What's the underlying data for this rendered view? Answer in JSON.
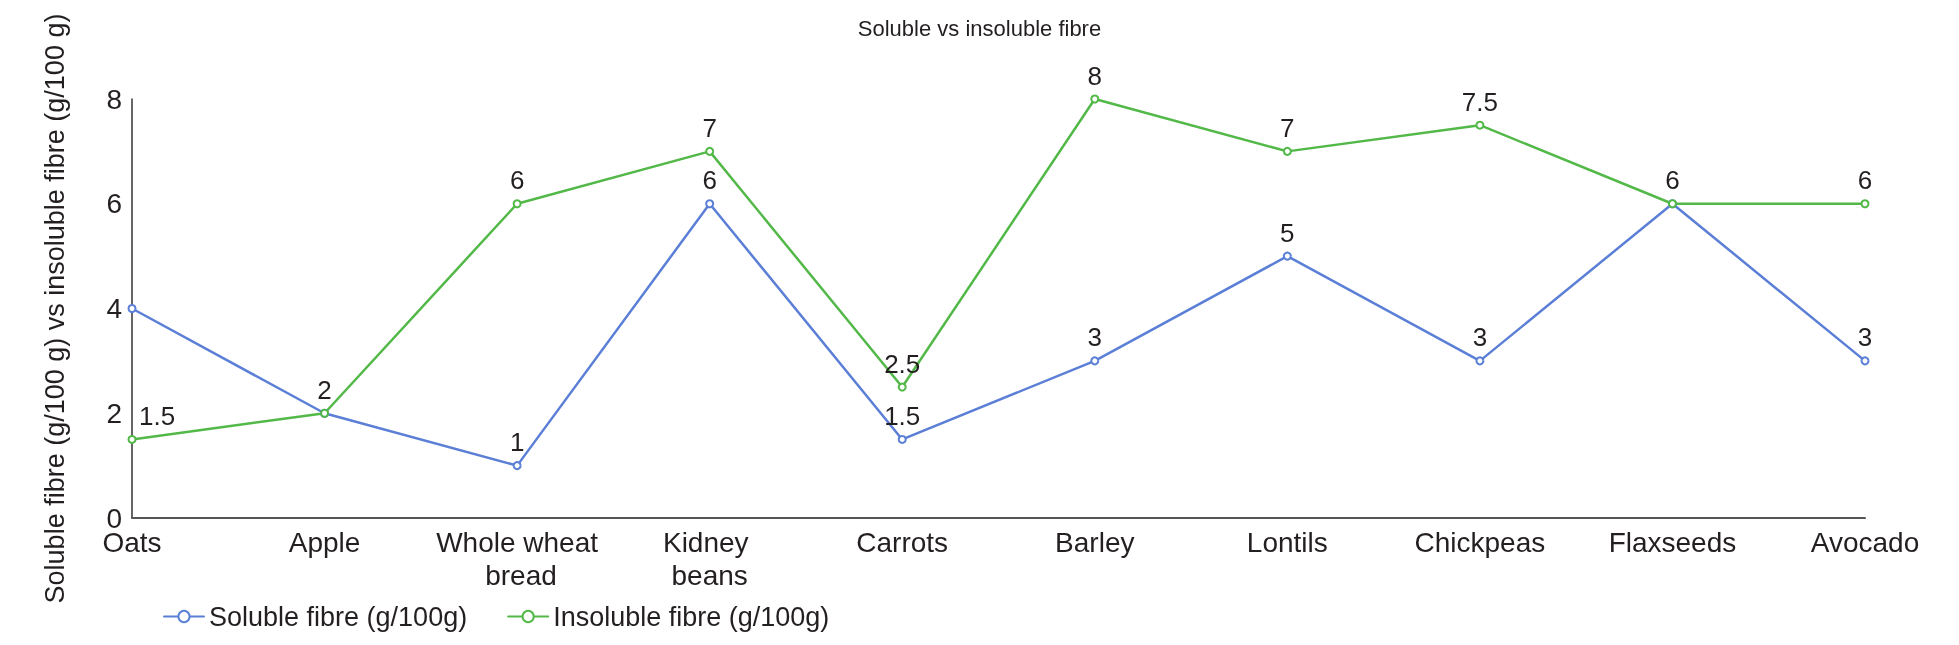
{
  "chart_data": {
    "type": "line",
    "title": "Soluble vs insoluble fibre",
    "ylabel": "Soluble fibre (g/100 g) vs insoluble fibre (g/100 g)",
    "categories": [
      "Oats",
      "Apple",
      "Whole wheat bread",
      "Kidney beans",
      "Carrots",
      "Barley",
      "Lontils",
      "Chickpeas",
      "Flaxseeds",
      "Avocado"
    ],
    "series": [
      {
        "name": "Soluble fibre (g/100g)",
        "color": "#5b7fd6",
        "values": [
          4,
          2,
          1,
          6,
          1.5,
          3,
          5,
          3,
          6,
          3
        ],
        "value_labels": [
          null,
          null,
          "1",
          "6",
          "1.5",
          "3",
          "5",
          "3",
          null,
          "3"
        ]
      },
      {
        "name": "Insoluble fibre (g/100g)",
        "color": "#52b848",
        "values": [
          1.5,
          2,
          6,
          7,
          2.5,
          8,
          7,
          7.5,
          6,
          6
        ],
        "value_labels": [
          "1.5",
          "2",
          "6",
          "7",
          "2.5",
          "8",
          "7",
          "7.5",
          "6",
          "6"
        ]
      }
    ],
    "ylim": [
      0,
      8
    ],
    "yticks": [
      0,
      2,
      4,
      6,
      8
    ],
    "grid": false,
    "legend": "bottom left",
    "marker": "circle"
  }
}
